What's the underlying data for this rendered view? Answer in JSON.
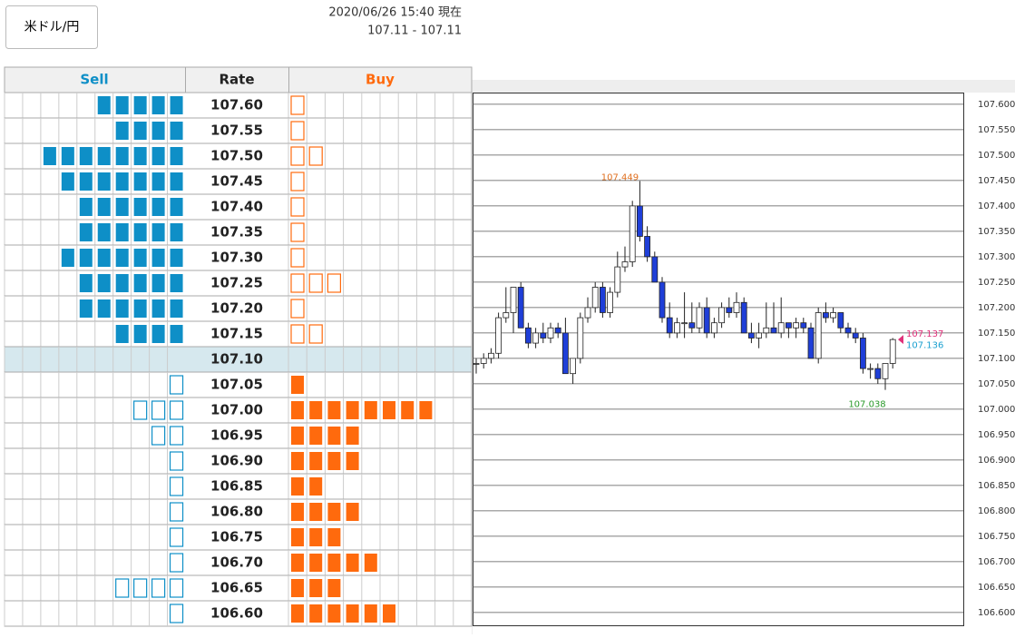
{
  "header": {
    "pair_button": "米ドル/円",
    "timestamp": "2020/06/26 15:40 現在",
    "quote": "107.11 - 107.11"
  },
  "table": {
    "columns": [
      "Sell",
      "Rate",
      "Buy"
    ],
    "sell_color": "#0e8fc7",
    "buy_color": "#ff6a0d",
    "rows": [
      {
        "rate": "107.60",
        "sell": 5,
        "sell_style": "filled",
        "buy": 1,
        "buy_style": "outline"
      },
      {
        "rate": "107.55",
        "sell": 4,
        "sell_style": "filled",
        "buy": 1,
        "buy_style": "outline"
      },
      {
        "rate": "107.50",
        "sell": 8,
        "sell_style": "filled",
        "buy": 2,
        "buy_style": "outline"
      },
      {
        "rate": "107.45",
        "sell": 7,
        "sell_style": "filled",
        "buy": 1,
        "buy_style": "outline"
      },
      {
        "rate": "107.40",
        "sell": 6,
        "sell_style": "filled",
        "buy": 1,
        "buy_style": "outline"
      },
      {
        "rate": "107.35",
        "sell": 6,
        "sell_style": "filled",
        "buy": 1,
        "buy_style": "outline"
      },
      {
        "rate": "107.30",
        "sell": 7,
        "sell_style": "filled",
        "buy": 1,
        "buy_style": "outline"
      },
      {
        "rate": "107.25",
        "sell": 6,
        "sell_style": "filled",
        "buy": 3,
        "buy_style": "outline"
      },
      {
        "rate": "107.20",
        "sell": 6,
        "sell_style": "filled",
        "buy": 1,
        "buy_style": "outline"
      },
      {
        "rate": "107.15",
        "sell": 4,
        "sell_style": "filled",
        "buy": 2,
        "buy_style": "outline"
      },
      {
        "rate": "107.10",
        "sell": 0,
        "sell_style": "filled",
        "buy": 0,
        "buy_style": "filled",
        "highlight": true
      },
      {
        "rate": "107.05",
        "sell": 1,
        "sell_style": "outline",
        "buy": 1,
        "buy_style": "filled"
      },
      {
        "rate": "107.00",
        "sell": 3,
        "sell_style": "outline",
        "buy": 8,
        "buy_style": "filled"
      },
      {
        "rate": "106.95",
        "sell": 2,
        "sell_style": "outline",
        "buy": 4,
        "buy_style": "filled"
      },
      {
        "rate": "106.90",
        "sell": 1,
        "sell_style": "outline",
        "buy": 4,
        "buy_style": "filled"
      },
      {
        "rate": "106.85",
        "sell": 1,
        "sell_style": "outline",
        "buy": 2,
        "buy_style": "filled"
      },
      {
        "rate": "106.80",
        "sell": 1,
        "sell_style": "outline",
        "buy": 4,
        "buy_style": "filled"
      },
      {
        "rate": "106.75",
        "sell": 1,
        "sell_style": "outline",
        "buy": 3,
        "buy_style": "filled"
      },
      {
        "rate": "106.70",
        "sell": 1,
        "sell_style": "outline",
        "buy": 5,
        "buy_style": "filled"
      },
      {
        "rate": "106.65",
        "sell": 4,
        "sell_style": "outline",
        "buy": 3,
        "buy_style": "filled"
      },
      {
        "rate": "106.60",
        "sell": 1,
        "sell_style": "outline",
        "buy": 6,
        "buy_style": "filled"
      }
    ]
  },
  "chart_data": {
    "type": "candlestick",
    "up_color": "#ffffff",
    "down_color": "#1f3fd8",
    "grid": true,
    "ylim": [
      106.573,
      107.623
    ],
    "yticks": [
      {
        "value": 107.6,
        "label": "107.600"
      },
      {
        "value": 107.55,
        "label": "107.550"
      },
      {
        "value": 107.5,
        "label": "107.500"
      },
      {
        "value": 107.45,
        "label": "107.450"
      },
      {
        "value": 107.4,
        "label": "107.400"
      },
      {
        "value": 107.35,
        "label": "107.350"
      },
      {
        "value": 107.3,
        "label": "107.300"
      },
      {
        "value": 107.25,
        "label": "107.250"
      },
      {
        "value": 107.2,
        "label": "107.200"
      },
      {
        "value": 107.15,
        "label": "107.150"
      },
      {
        "value": 107.1,
        "label": "107.100"
      },
      {
        "value": 107.05,
        "label": "107.050"
      },
      {
        "value": 107,
        "label": "107.000"
      },
      {
        "value": 106.95,
        "label": "106.950"
      },
      {
        "value": 106.9,
        "label": "106.900"
      },
      {
        "value": 106.85,
        "label": "106.850"
      },
      {
        "value": 106.8,
        "label": "106.800"
      },
      {
        "value": 106.75,
        "label": "106.750"
      },
      {
        "value": 106.7,
        "label": "106.700"
      },
      {
        "value": 106.65,
        "label": "106.650"
      },
      {
        "value": 106.6,
        "label": "106.600"
      }
    ],
    "open": [
      107.09,
      107.09,
      107.1,
      107.11,
      107.18,
      107.19,
      107.24,
      107.16,
      107.13,
      107.15,
      107.14,
      107.16,
      107.15,
      107.07,
      107.1,
      107.18,
      107.2,
      107.24,
      107.19,
      107.23,
      107.28,
      107.29,
      107.4,
      107.34,
      107.3,
      107.25,
      107.18,
      107.15,
      107.17,
      107.17,
      107.16,
      107.2,
      107.15,
      107.17,
      107.2,
      107.19,
      107.21,
      107.15,
      107.14,
      107.15,
      107.16,
      107.15,
      107.17,
      107.16,
      107.17,
      107.16,
      107.1,
      107.19,
      107.18,
      107.19,
      107.16,
      107.15,
      107.14,
      107.08,
      107.08,
      107.06,
      107.09
    ],
    "high": [
      107.1,
      107.11,
      107.12,
      107.19,
      107.24,
      107.24,
      107.25,
      107.17,
      107.16,
      107.17,
      107.17,
      107.17,
      107.18,
      107.1,
      107.19,
      107.22,
      107.25,
      107.25,
      107.24,
      107.31,
      107.32,
      107.41,
      107.449,
      107.36,
      107.31,
      107.26,
      107.21,
      107.18,
      107.23,
      107.21,
      107.21,
      107.22,
      107.18,
      107.21,
      107.22,
      107.23,
      107.22,
      107.17,
      107.17,
      107.21,
      107.21,
      107.22,
      107.17,
      107.18,
      107.18,
      107.17,
      107.2,
      107.21,
      107.2,
      107.19,
      107.17,
      107.16,
      107.15,
      107.09,
      107.09,
      107.09,
      107.14
    ],
    "low": [
      107.07,
      107.08,
      107.09,
      107.1,
      107.17,
      107.15,
      107.16,
      107.12,
      107.12,
      107.13,
      107.13,
      107.14,
      107.07,
      107.05,
      107.09,
      107.17,
      107.19,
      107.18,
      107.18,
      107.22,
      107.27,
      107.28,
      107.33,
      107.29,
      107.25,
      107.17,
      107.14,
      107.14,
      107.14,
      107.15,
      107.15,
      107.14,
      107.14,
      107.16,
      107.18,
      107.18,
      107.15,
      107.13,
      107.12,
      107.14,
      107.15,
      107.14,
      107.14,
      107.14,
      107.15,
      107.1,
      107.09,
      107.17,
      107.17,
      107.15,
      107.14,
      107.13,
      107.07,
      107.06,
      107.05,
      107.038,
      107.08
    ],
    "close": [
      107.09,
      107.1,
      107.11,
      107.18,
      107.19,
      107.24,
      107.16,
      107.13,
      107.15,
      107.14,
      107.16,
      107.15,
      107.07,
      107.1,
      107.18,
      107.2,
      107.24,
      107.19,
      107.23,
      107.28,
      107.29,
      107.4,
      107.34,
      107.3,
      107.25,
      107.18,
      107.15,
      107.17,
      107.17,
      107.16,
      107.2,
      107.15,
      107.17,
      107.2,
      107.19,
      107.21,
      107.15,
      107.14,
      107.15,
      107.16,
      107.15,
      107.17,
      107.16,
      107.17,
      107.16,
      107.1,
      107.19,
      107.18,
      107.19,
      107.16,
      107.15,
      107.14,
      107.08,
      107.08,
      107.06,
      107.09,
      107.137
    ],
    "high_label": {
      "value": 107.449,
      "color": "#e07020"
    },
    "low_label": {
      "value": 107.038,
      "color": "#2a9a2a"
    },
    "ask": {
      "value": 107.137,
      "color": "#e0307a"
    },
    "bid": {
      "value": 107.136,
      "color": "#1aa0d0"
    }
  }
}
